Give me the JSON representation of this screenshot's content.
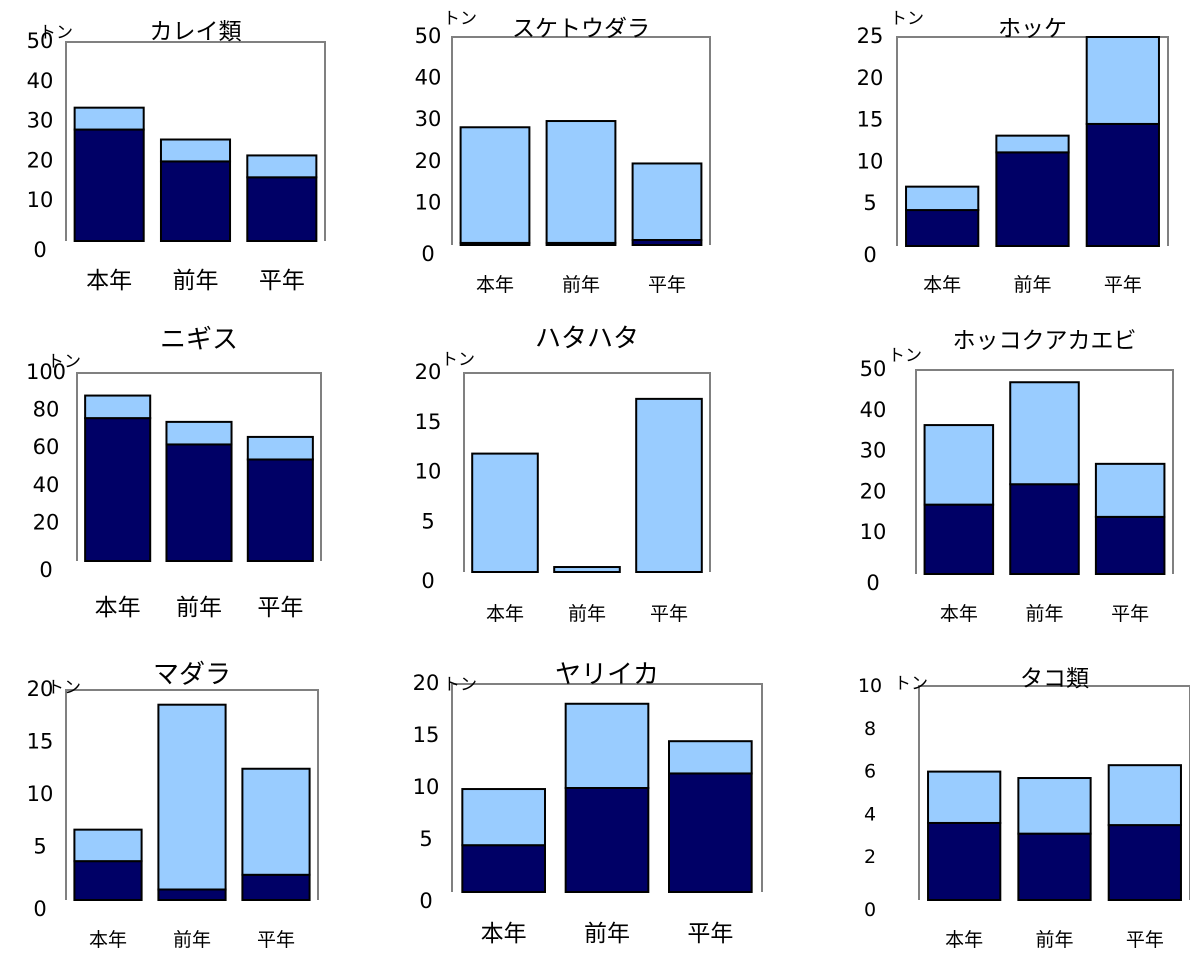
{
  "colors": {
    "bottom_segment": "#000066",
    "top_segment": "#99ccff",
    "plot_border": "#808080",
    "bar_outline": "#000000"
  },
  "chart_data": [
    {
      "type": "bar",
      "stacked": true,
      "title": "カレイ類",
      "unit": "トン",
      "categories": [
        "本年",
        "前年",
        "平年"
      ],
      "series": [
        {
          "values": [
            28,
            20,
            16
          ]
        },
        {
          "values": [
            5.5,
            5.5,
            5.5
          ]
        }
      ],
      "ylim": [
        0,
        50
      ],
      "yticks": [
        0,
        10,
        20,
        30,
        40,
        50
      ]
    },
    {
      "type": "bar",
      "stacked": true,
      "title": "スケトウダラ",
      "unit": "トン",
      "categories": [
        "本年",
        "前年",
        "平年"
      ],
      "series": [
        {
          "values": [
            0.5,
            0.5,
            1.2
          ]
        },
        {
          "values": [
            27.8,
            29.3,
            18.4
          ]
        }
      ],
      "ylim": [
        0,
        50
      ],
      "yticks": [
        0,
        10,
        20,
        30,
        40,
        50
      ]
    },
    {
      "type": "bar",
      "stacked": true,
      "title": "ホッケ",
      "unit": "トン",
      "categories": [
        "本年",
        "前年",
        "平年"
      ],
      "series": [
        {
          "values": [
            4.3,
            11.2,
            14.6
          ]
        },
        {
          "values": [
            2.8,
            2.0,
            10.4
          ]
        }
      ],
      "ylim": [
        0,
        25
      ],
      "yticks": [
        0,
        5,
        10,
        15,
        20,
        25
      ]
    },
    {
      "type": "bar",
      "stacked": true,
      "title": "ニギス",
      "unit": "トン",
      "categories": [
        "本年",
        "前年",
        "平年"
      ],
      "series": [
        {
          "values": [
            76,
            62,
            54
          ]
        },
        {
          "values": [
            12,
            12,
            12
          ]
        }
      ],
      "ylim": [
        0,
        100
      ],
      "yticks": [
        0,
        20,
        40,
        60,
        80,
        100
      ]
    },
    {
      "type": "bar",
      "stacked": true,
      "title": "ハタハタ",
      "unit": "トン",
      "categories": [
        "本年",
        "前年",
        "平年"
      ],
      "series": [
        {
          "values": [
            0,
            0,
            0
          ]
        },
        {
          "values": [
            11.9,
            0.5,
            17.4
          ]
        }
      ],
      "ylim": [
        0,
        20
      ],
      "yticks": [
        0,
        5,
        10,
        15,
        20
      ]
    },
    {
      "type": "bar",
      "stacked": true,
      "title": "ホッコクアカエビ",
      "unit": "トン",
      "categories": [
        "本年",
        "前年",
        "平年"
      ],
      "series": [
        {
          "values": [
            17,
            22,
            14
          ]
        },
        {
          "values": [
            19.5,
            25,
            13
          ]
        }
      ],
      "ylim": [
        0,
        50
      ],
      "yticks": [
        0,
        10,
        20,
        30,
        40,
        50
      ]
    },
    {
      "type": "bar",
      "stacked": true,
      "title": "マダラ",
      "unit": "トン",
      "categories": [
        "本年",
        "前年",
        "平年"
      ],
      "series": [
        {
          "values": [
            3.7,
            1.0,
            2.4
          ]
        },
        {
          "values": [
            3.0,
            17.6,
            10.1
          ]
        }
      ],
      "ylim": [
        0,
        20
      ],
      "yticks": [
        0,
        5,
        10,
        15,
        20
      ]
    },
    {
      "type": "bar",
      "stacked": true,
      "title": "ヤリイカ",
      "unit": "トン",
      "categories": [
        "本年",
        "前年",
        "平年"
      ],
      "series": [
        {
          "values": [
            4.5,
            10.0,
            11.4
          ]
        },
        {
          "values": [
            5.4,
            8.1,
            3.1
          ]
        }
      ],
      "ylim": [
        0,
        20
      ],
      "yticks": [
        0,
        5,
        10,
        15,
        20
      ]
    },
    {
      "type": "bar",
      "stacked": true,
      "title": "タコ類",
      "unit": "トン",
      "categories": [
        "本年",
        "前年",
        "平年"
      ],
      "series": [
        {
          "values": [
            3.6,
            3.1,
            3.5
          ]
        },
        {
          "values": [
            2.4,
            2.6,
            2.8
          ]
        }
      ],
      "ylim": [
        0,
        10
      ],
      "yticks": [
        0,
        2,
        4,
        6,
        8,
        10
      ]
    }
  ]
}
